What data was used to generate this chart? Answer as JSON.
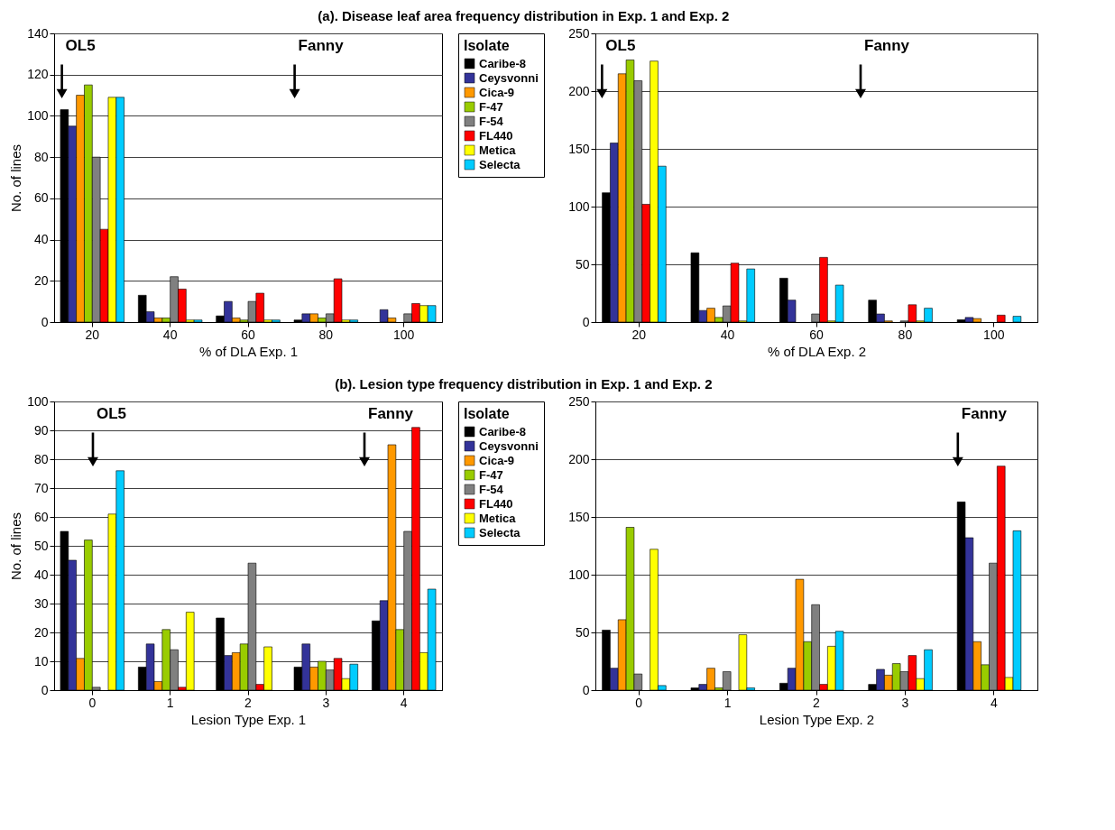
{
  "chart_data": [
    {
      "type": "bar",
      "title": "(a). Disease leaf area frequency distribution in Exp. 1 and Exp. 2",
      "categories": [
        "20",
        "40",
        "60",
        "80",
        "100"
      ],
      "xlabel": "% of DLA Exp. 1",
      "ylabel": "No. of lines",
      "ylim": [
        0,
        140
      ],
      "yticks": [
        0,
        20,
        40,
        60,
        80,
        100,
        120,
        140
      ],
      "grid": "y",
      "legend": "right",
      "legend_title": "Isolate",
      "series": [
        {
          "name": "Caribe-8",
          "color": "#000000",
          "values": [
            103,
            13,
            3,
            1,
            0
          ]
        },
        {
          "name": "Ceysvonni",
          "color": "#333399",
          "values": [
            95,
            5,
            10,
            4,
            6
          ]
        },
        {
          "name": "Cica-9",
          "color": "#ff9900",
          "values": [
            110,
            2,
            2,
            4,
            2
          ]
        },
        {
          "name": "F-47",
          "color": "#99cc00",
          "values": [
            115,
            2,
            1,
            2,
            0
          ]
        },
        {
          "name": "F-54",
          "color": "#808080",
          "values": [
            80,
            22,
            10,
            4,
            4
          ]
        },
        {
          "name": "FL440",
          "color": "#ff0000",
          "values": [
            45,
            16,
            14,
            21,
            9
          ]
        },
        {
          "name": "Metica",
          "color": "#ffff00",
          "values": [
            109,
            1,
            1,
            1,
            8
          ]
        },
        {
          "name": "Selecta",
          "color": "#00ccff",
          "values": [
            109,
            1,
            1,
            1,
            8
          ]
        }
      ],
      "annotations": [
        "OL5",
        "Fanny"
      ]
    },
    {
      "type": "bar",
      "categories": [
        "20",
        "40",
        "60",
        "80",
        "100"
      ],
      "xlabel": "% of DLA Exp. 2",
      "ylim": [
        0,
        250
      ],
      "yticks": [
        0,
        50,
        100,
        150,
        200,
        250
      ],
      "grid": "y",
      "series": [
        {
          "color": "#000000",
          "values": [
            112,
            60,
            38,
            19,
            2
          ]
        },
        {
          "color": "#333399",
          "values": [
            155,
            10,
            19,
            7,
            4
          ]
        },
        {
          "color": "#ff9900",
          "values": [
            215,
            12,
            0,
            1,
            3
          ]
        },
        {
          "color": "#99cc00",
          "values": [
            227,
            4,
            0,
            0,
            0
          ]
        },
        {
          "color": "#808080",
          "values": [
            209,
            14,
            7,
            1,
            0
          ]
        },
        {
          "color": "#ff0000",
          "values": [
            102,
            51,
            56,
            15,
            6
          ]
        },
        {
          "color": "#ffff00",
          "values": [
            226,
            1,
            1,
            1,
            0
          ]
        },
        {
          "color": "#00ccff",
          "values": [
            135,
            46,
            32,
            12,
            5
          ]
        }
      ],
      "annotations": [
        "OL5",
        "Fanny"
      ]
    },
    {
      "type": "bar",
      "title": "(b). Lesion type frequency distribution in Exp. 1 and Exp. 2",
      "categories": [
        "0",
        "1",
        "2",
        "3",
        "4"
      ],
      "xlabel": "Lesion Type Exp. 1",
      "ylabel": "No. of lines",
      "ylim": [
        0,
        100
      ],
      "yticks": [
        0,
        10,
        20,
        30,
        40,
        50,
        60,
        70,
        80,
        90,
        100
      ],
      "grid": "y",
      "legend": "right",
      "legend_title": "Isolate",
      "series": [
        {
          "name": "Caribe-8",
          "color": "#000000",
          "values": [
            55,
            8,
            25,
            8,
            24
          ]
        },
        {
          "name": "Ceysvonni",
          "color": "#333399",
          "values": [
            45,
            16,
            12,
            16,
            31
          ]
        },
        {
          "name": "Cica-9",
          "color": "#ff9900",
          "values": [
            11,
            3,
            13,
            8,
            85
          ]
        },
        {
          "name": "F-47",
          "color": "#99cc00",
          "values": [
            52,
            21,
            16,
            10,
            21
          ]
        },
        {
          "name": "F-54",
          "color": "#808080",
          "values": [
            1,
            14,
            44,
            7,
            55
          ]
        },
        {
          "name": "FL440",
          "color": "#ff0000",
          "values": [
            0,
            1,
            2,
            11,
            91
          ]
        },
        {
          "name": "Metica",
          "color": "#ffff00",
          "values": [
            61,
            27,
            15,
            4,
            13
          ]
        },
        {
          "name": "Selecta",
          "color": "#00ccff",
          "values": [
            76,
            0,
            0,
            9,
            35
          ]
        }
      ],
      "annotations": [
        "OL5",
        "Fanny"
      ]
    },
    {
      "type": "bar",
      "categories": [
        "0",
        "1",
        "2",
        "3",
        "4"
      ],
      "xlabel": "Lesion Type Exp. 2",
      "ylim": [
        0,
        250
      ],
      "yticks": [
        0,
        50,
        100,
        150,
        200,
        250
      ],
      "grid": "y",
      "series": [
        {
          "color": "#000000",
          "values": [
            52,
            2,
            6,
            5,
            163
          ]
        },
        {
          "color": "#333399",
          "values": [
            19,
            5,
            19,
            18,
            132
          ]
        },
        {
          "color": "#ff9900",
          "values": [
            61,
            19,
            96,
            13,
            42
          ]
        },
        {
          "color": "#99cc00",
          "values": [
            141,
            2,
            42,
            23,
            22
          ]
        },
        {
          "color": "#808080",
          "values": [
            14,
            16,
            74,
            16,
            110
          ]
        },
        {
          "color": "#ff0000",
          "values": [
            0,
            0,
            5,
            30,
            194
          ]
        },
        {
          "color": "#ffff00",
          "values": [
            122,
            48,
            38,
            10,
            11
          ]
        },
        {
          "color": "#00ccff",
          "values": [
            4,
            2,
            51,
            35,
            138
          ]
        }
      ],
      "annotations": [
        "Fanny"
      ]
    }
  ]
}
